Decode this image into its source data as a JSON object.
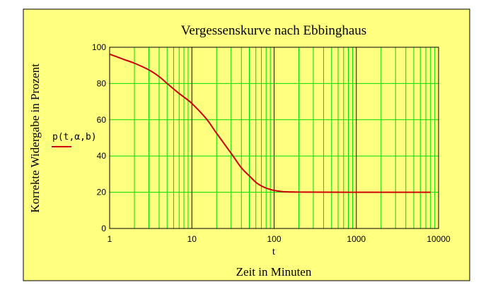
{
  "chart_data": {
    "type": "line",
    "title": "Vergessenskurve nach Ebbinghaus",
    "xlabel": "Zeit in Minuten",
    "xvar": "t",
    "ylabel": "Korrekte Widergabe in Prozent",
    "x_scale": "log",
    "xlim": [
      1,
      10000
    ],
    "ylim": [
      0,
      100
    ],
    "x_ticks": [
      1,
      10,
      100,
      1000,
      10000
    ],
    "x_tick_labels": [
      "1",
      "10",
      "100",
      "1000",
      "10000"
    ],
    "y_ticks": [
      0,
      20,
      40,
      60,
      80,
      100
    ],
    "y_tick_labels": [
      "0",
      "20",
      "40",
      "60",
      "80",
      "100"
    ],
    "grid": true,
    "legend_position": "left",
    "series": [
      {
        "name": "p(t,α,b)",
        "color": "#cc0000",
        "points": [
          [
            1,
            96.2
          ],
          [
            1.5,
            93.2
          ],
          [
            2,
            91.2
          ],
          [
            3,
            87.5
          ],
          [
            4,
            83.8
          ],
          [
            5,
            80
          ],
          [
            6,
            77
          ],
          [
            7,
            74.5
          ],
          [
            8,
            72.5
          ],
          [
            10,
            69
          ],
          [
            15,
            60.5
          ],
          [
            20,
            52.5
          ],
          [
            30,
            41.5
          ],
          [
            40,
            33.5
          ],
          [
            50,
            29
          ],
          [
            60,
            25.5
          ],
          [
            70,
            23.5
          ],
          [
            80,
            22.3
          ],
          [
            100,
            21
          ],
          [
            130,
            20.3
          ],
          [
            200,
            20.1
          ],
          [
            1000,
            20
          ],
          [
            8000,
            20
          ]
        ]
      }
    ]
  },
  "colors": {
    "page_background": "#ffff80",
    "plot_background": "#ffff80",
    "minor_grid": "#00dd00",
    "major_grid": "#000000",
    "curve": "#cc0000"
  }
}
